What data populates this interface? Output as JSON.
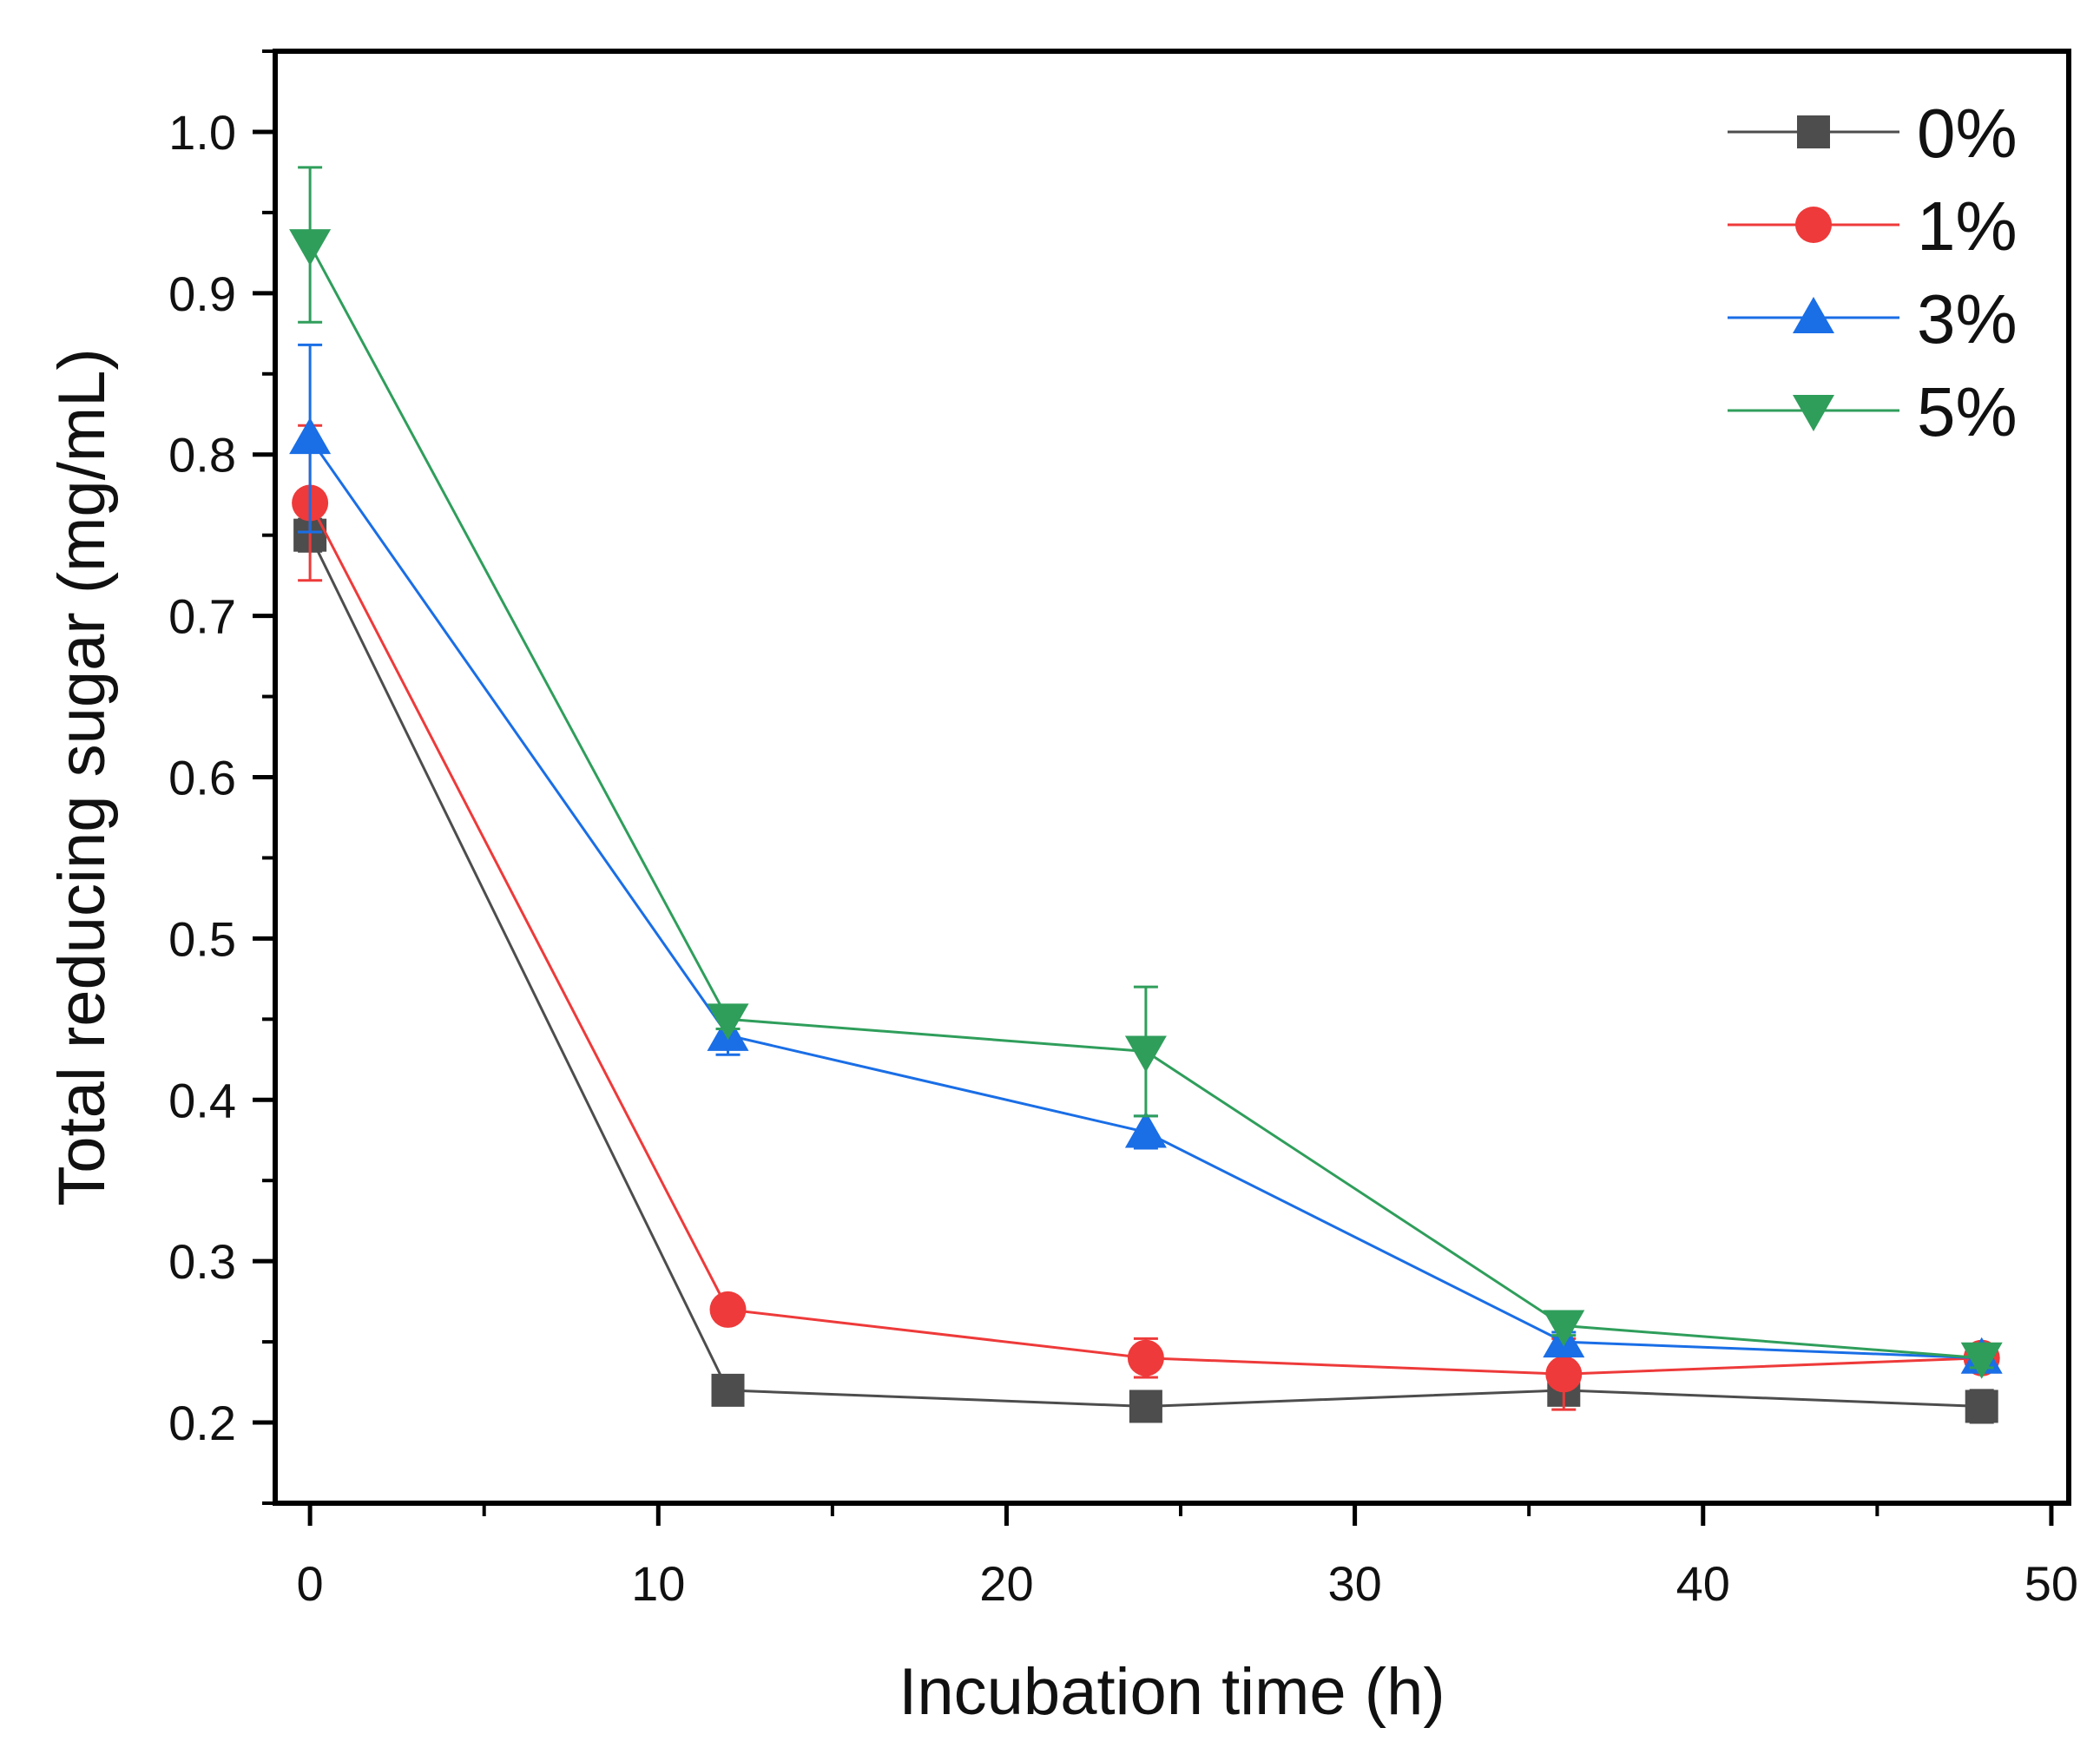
{
  "chart_data": {
    "type": "line",
    "xlabel": "Incubation time (h)",
    "ylabel": "Total reducing sugar (mg/mL)",
    "xlim": [
      -1,
      50.5
    ],
    "ylim": [
      0.15,
      1.05
    ],
    "xticks": [
      0,
      10,
      20,
      30,
      40,
      50
    ],
    "xtick_labels": [
      "0",
      "10",
      "20",
      "30",
      "40",
      "50"
    ],
    "yticks": [
      0.2,
      0.3,
      0.4,
      0.5,
      0.6,
      0.7,
      0.8,
      0.9,
      1.0
    ],
    "ytick_labels": [
      "0.2",
      "0.3",
      "0.4",
      "0.5",
      "0.6",
      "0.7",
      "0.8",
      "0.9",
      "1.0"
    ],
    "legend_position": "top-right",
    "grid": false,
    "x": [
      0,
      12,
      24,
      36,
      48
    ],
    "series": [
      {
        "name": "0%",
        "color": "#4d4d4d",
        "marker": "square",
        "values": [
          0.75,
          0.22,
          0.21,
          0.22,
          0.21
        ],
        "errors": [
          0.01,
          0.006,
          0.006,
          0.006,
          0.01
        ]
      },
      {
        "name": "1%",
        "color": "#ee3a3a",
        "marker": "circle",
        "values": [
          0.77,
          0.27,
          0.24,
          0.23,
          0.24
        ],
        "errors": [
          0.048,
          0.006,
          0.012,
          0.022,
          0.006
        ]
      },
      {
        "name": "3%",
        "color": "#1a6ee6",
        "marker": "triangle-up",
        "values": [
          0.81,
          0.44,
          0.38,
          0.25,
          0.24
        ],
        "errors": [
          0.058,
          0.012,
          0.01,
          0.006,
          0.008
        ]
      },
      {
        "name": "5%",
        "color": "#2f9e5b",
        "marker": "triangle-down",
        "values": [
          0.93,
          0.45,
          0.43,
          0.26,
          0.24
        ],
        "errors": [
          0.048,
          0.006,
          0.04,
          0.006,
          0.006
        ]
      }
    ]
  }
}
